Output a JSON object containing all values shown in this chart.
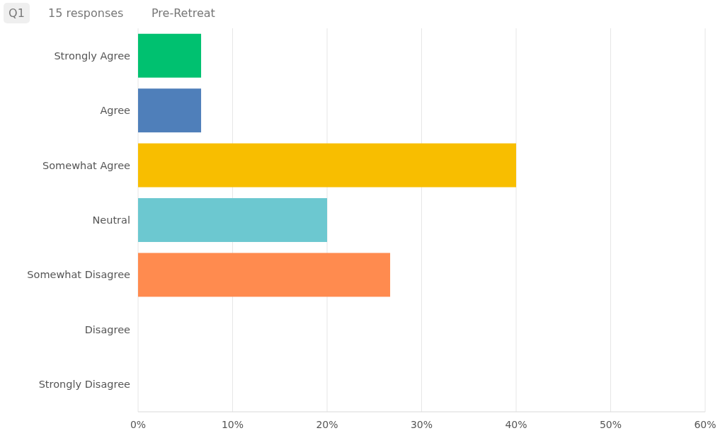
{
  "chart_data": {
    "type": "bar",
    "orientation": "horizontal",
    "title": "Q1",
    "subtitle": "15 responses",
    "annotations": [
      "Pre-Retreat"
    ],
    "categories": [
      "Strongly Agree",
      "Agree",
      "Somewhat Agree",
      "Neutral",
      "Somewhat Disagree",
      "Disagree",
      "Strongly Disagree"
    ],
    "values": [
      6.67,
      6.67,
      40,
      20,
      26.67,
      0,
      0
    ],
    "colors": [
      "#00c170",
      "#4f7fba",
      "#f8be00",
      "#6cc8d0",
      "#ff8b4f",
      "#8dd3a0",
      "#b39ddb"
    ],
    "xlim": [
      0,
      60
    ],
    "xticks": [
      {
        "value": 0,
        "label": "0%"
      },
      {
        "value": 10,
        "label": "10%"
      },
      {
        "value": 20,
        "label": "20%"
      },
      {
        "value": 30,
        "label": "30%"
      },
      {
        "value": 40,
        "label": "40%"
      },
      {
        "value": 50,
        "label": "50%"
      },
      {
        "value": 60,
        "label": "60%"
      }
    ],
    "grid": "x"
  }
}
